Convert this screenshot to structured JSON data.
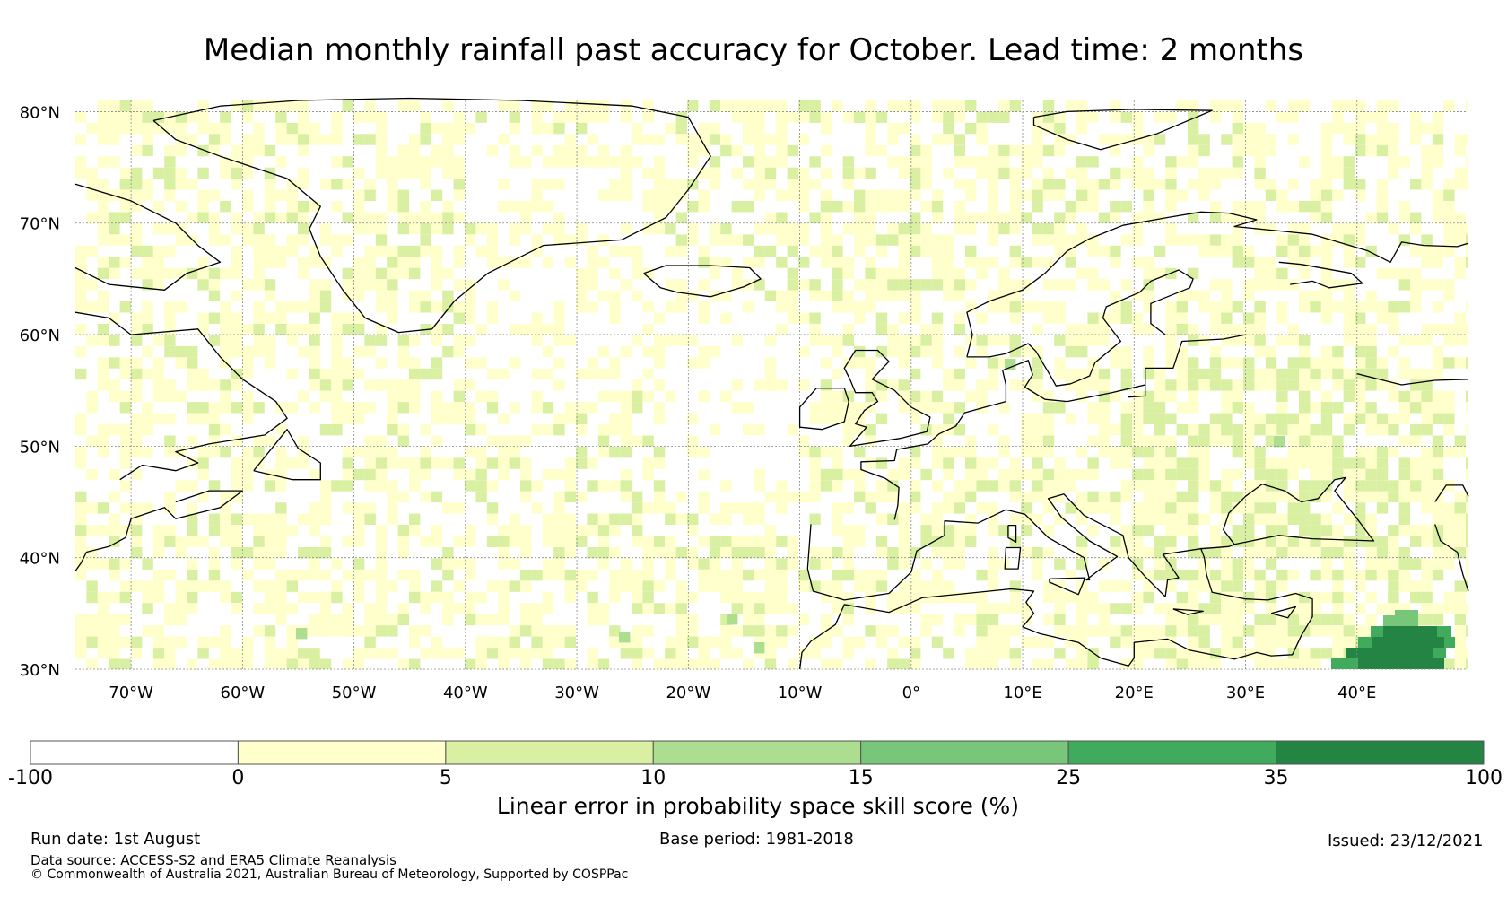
{
  "title": "Median monthly rainfall past accuracy for October. Lead time: 2 months",
  "map": {
    "lat_ticks": [
      "30°N",
      "40°N",
      "50°N",
      "60°N",
      "70°N",
      "80°N"
    ],
    "lon_ticks": [
      "70°W",
      "60°W",
      "50°W",
      "40°W",
      "30°W",
      "20°W",
      "10°W",
      "0°",
      "10°E",
      "20°E",
      "30°E",
      "40°E"
    ],
    "lat_values": [
      30,
      40,
      50,
      60,
      70,
      80
    ],
    "lon_values": [
      -70,
      -60,
      -50,
      -40,
      -30,
      -20,
      -10,
      0,
      10,
      20,
      30,
      40
    ],
    "extent": {
      "lon": [
        -75,
        50
      ],
      "lat": [
        30,
        81
      ]
    },
    "gridlines": true
  },
  "colorbar": {
    "label": "Linear error in probability space skill score (%)",
    "tick_labels": [
      "-100",
      "0",
      "5",
      "10",
      "15",
      "25",
      "35",
      "100"
    ],
    "colors": [
      "#ffffff",
      "#ffffcc",
      "#d9f0a3",
      "#addd8e",
      "#78c679",
      "#41ab5d",
      "#238443"
    ]
  },
  "footer": {
    "run_date": "Run date: 1st August",
    "base_period": "Base period: 1981-2018",
    "issued": "Issued: 23/12/2021",
    "data_source": "Data source: ACCESS-S2 and ERA5 Climate Reanalysis",
    "copyright": "© Commonwealth of Australia 2021, Australian Bureau of Meteorology, Supported by COSPPac"
  }
}
